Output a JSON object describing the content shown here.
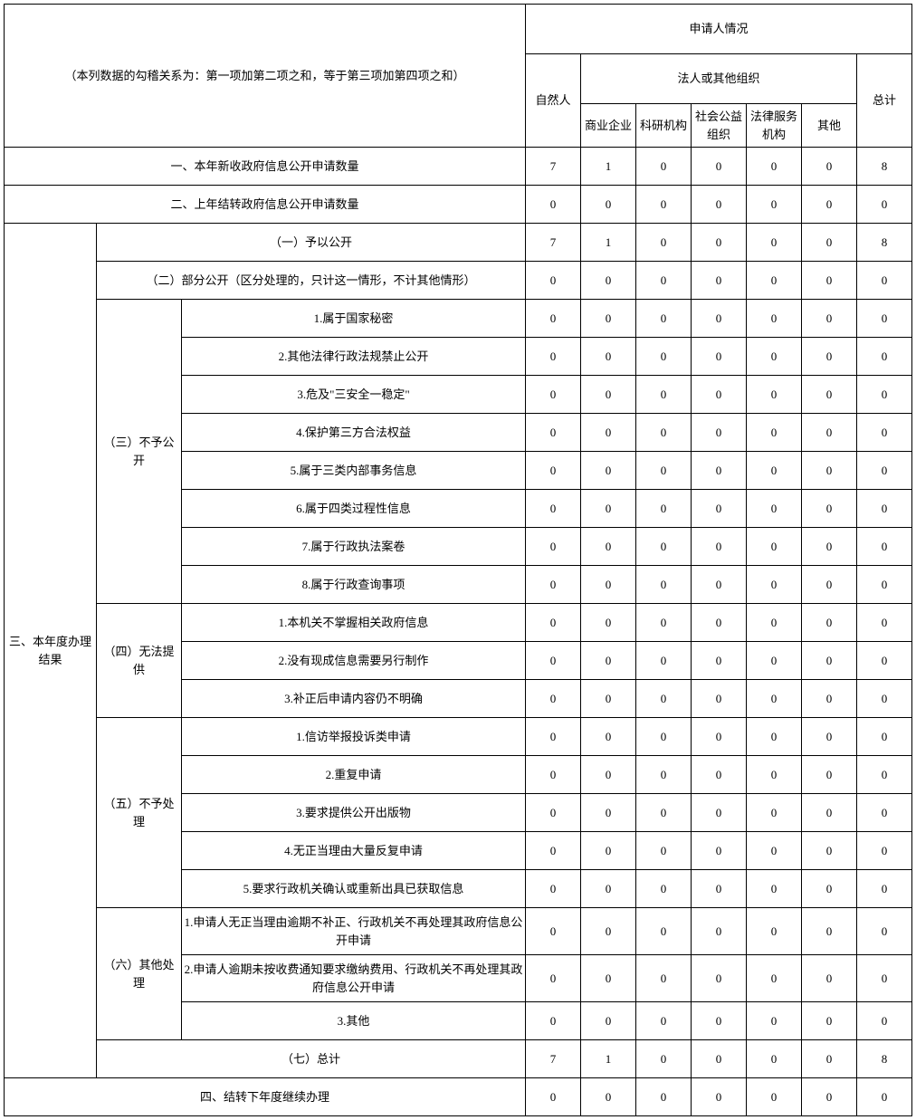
{
  "header": {
    "note": "（本列数据的勾稽关系为：第一项加第二项之和，等于第三项加第四项之和）",
    "applicant_title": "申请人情况",
    "natural_person": "自然人",
    "legal_entity_title": "法人或其他组织",
    "total": "总计",
    "cols": {
      "c1": "商业企业",
      "c2": "科研机构",
      "c3": "社会公益组织",
      "c4": "法律服务机构",
      "c5": "其他"
    }
  },
  "rows": {
    "r1": {
      "label": "一、本年新收政府信息公开申请数量",
      "v": [
        "7",
        "1",
        "0",
        "0",
        "0",
        "0",
        "8"
      ]
    },
    "r2": {
      "label": "二、上年结转政府信息公开申请数量",
      "v": [
        "0",
        "0",
        "0",
        "0",
        "0",
        "0",
        "0"
      ]
    },
    "section3_label": "三、本年度办理结果",
    "r3": {
      "label": "（一）予以公开",
      "v": [
        "7",
        "1",
        "0",
        "0",
        "0",
        "0",
        "8"
      ]
    },
    "r4": {
      "label": "（二）部分公开（区分处理的，只计这一情形，不计其他情形）",
      "v": [
        "0",
        "0",
        "0",
        "0",
        "0",
        "0",
        "0"
      ]
    },
    "g3_label": "（三）不予公开",
    "r5": {
      "label": "1.属于国家秘密",
      "v": [
        "0",
        "0",
        "0",
        "0",
        "0",
        "0",
        "0"
      ]
    },
    "r6": {
      "label": "2.其他法律行政法规禁止公开",
      "v": [
        "0",
        "0",
        "0",
        "0",
        "0",
        "0",
        "0"
      ]
    },
    "r7": {
      "label": "3.危及\"三安全一稳定\"",
      "v": [
        "0",
        "0",
        "0",
        "0",
        "0",
        "0",
        "0"
      ]
    },
    "r8": {
      "label": "4.保护第三方合法权益",
      "v": [
        "0",
        "0",
        "0",
        "0",
        "0",
        "0",
        "0"
      ]
    },
    "r9": {
      "label": "5.属于三类内部事务信息",
      "v": [
        "0",
        "0",
        "0",
        "0",
        "0",
        "0",
        "0"
      ]
    },
    "r10": {
      "label": "6.属于四类过程性信息",
      "v": [
        "0",
        "0",
        "0",
        "0",
        "0",
        "0",
        "0"
      ]
    },
    "r11": {
      "label": "7.属于行政执法案卷",
      "v": [
        "0",
        "0",
        "0",
        "0",
        "0",
        "0",
        "0"
      ]
    },
    "r12": {
      "label": "8.属于行政查询事项",
      "v": [
        "0",
        "0",
        "0",
        "0",
        "0",
        "0",
        "0"
      ]
    },
    "g4_label": "（四）无法提供",
    "r13": {
      "label": "1.本机关不掌握相关政府信息",
      "v": [
        "0",
        "0",
        "0",
        "0",
        "0",
        "0",
        "0"
      ]
    },
    "r14": {
      "label": "2.没有现成信息需要另行制作",
      "v": [
        "0",
        "0",
        "0",
        "0",
        "0",
        "0",
        "0"
      ]
    },
    "r15": {
      "label": "3.补正后申请内容仍不明确",
      "v": [
        "0",
        "0",
        "0",
        "0",
        "0",
        "0",
        "0"
      ]
    },
    "g5_label": "（五）不予处理",
    "r16": {
      "label": "1.信访举报投诉类申请",
      "v": [
        "0",
        "0",
        "0",
        "0",
        "0",
        "0",
        "0"
      ]
    },
    "r17": {
      "label": "2.重复申请",
      "v": [
        "0",
        "0",
        "0",
        "0",
        "0",
        "0",
        "0"
      ]
    },
    "r18": {
      "label": "3.要求提供公开出版物",
      "v": [
        "0",
        "0",
        "0",
        "0",
        "0",
        "0",
        "0"
      ]
    },
    "r19": {
      "label": "4.无正当理由大量反复申请",
      "v": [
        "0",
        "0",
        "0",
        "0",
        "0",
        "0",
        "0"
      ]
    },
    "r20": {
      "label": "5.要求行政机关确认或重新出具已获取信息",
      "v": [
        "0",
        "0",
        "0",
        "0",
        "0",
        "0",
        "0"
      ]
    },
    "g6_label": "（六）其他处理",
    "r21": {
      "label": "1.申请人无正当理由逾期不补正、行政机关不再处理其政府信息公开申请",
      "v": [
        "0",
        "0",
        "0",
        "0",
        "0",
        "0",
        "0"
      ]
    },
    "r22": {
      "label": "2.申请人逾期未按收费通知要求缴纳费用、行政机关不再处理其政府信息公开申请",
      "v": [
        "0",
        "0",
        "0",
        "0",
        "0",
        "0",
        "0"
      ]
    },
    "r23": {
      "label": "3.其他",
      "v": [
        "0",
        "0",
        "0",
        "0",
        "0",
        "0",
        "0"
      ]
    },
    "r24": {
      "label": "（七）总计",
      "v": [
        "7",
        "1",
        "0",
        "0",
        "0",
        "0",
        "8"
      ]
    },
    "r25": {
      "label": "四、结转下年度继续办理",
      "v": [
        "0",
        "0",
        "0",
        "0",
        "0",
        "0",
        "0"
      ]
    }
  }
}
